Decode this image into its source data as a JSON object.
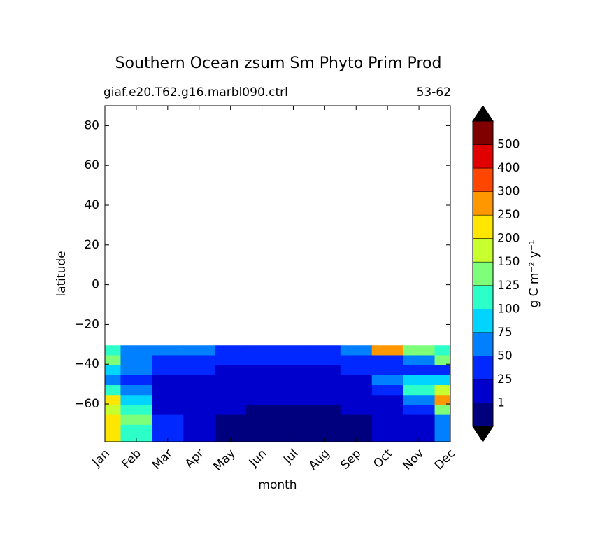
{
  "chart_data": {
    "type": "contourf",
    "title": "Southern Ocean zsum Sm Phyto Prim Prod",
    "subtitle_left": "giaf.e20.T62.g16.marbl090.ctrl",
    "subtitle_right": "53-62",
    "xlabel": "month",
    "ylabel": "latitude",
    "categories": [
      "Jan",
      "Feb",
      "Mar",
      "Apr",
      "May",
      "Jun",
      "Jul",
      "Aug",
      "Sep",
      "Oct",
      "Nov",
      "Dec"
    ],
    "latitudes": [
      -33,
      -38,
      -43,
      -48,
      -53,
      -58,
      -63,
      -68,
      -73,
      -78
    ],
    "z": [
      [
        110,
        70,
        60,
        55,
        40,
        35,
        35,
        40,
        60,
        260,
        130,
        110
      ],
      [
        130,
        60,
        40,
        40,
        30,
        28,
        28,
        30,
        35,
        40,
        50,
        130
      ],
      [
        80,
        50,
        30,
        25,
        20,
        15,
        15,
        20,
        25,
        35,
        30,
        40
      ],
      [
        60,
        40,
        20,
        15,
        10,
        8,
        8,
        10,
        15,
        60,
        80,
        90
      ],
      [
        110,
        60,
        20,
        10,
        5,
        4,
        4,
        5,
        10,
        40,
        110,
        180
      ],
      [
        220,
        90,
        20,
        8,
        3,
        2,
        2,
        3,
        5,
        20,
        60,
        260
      ],
      [
        180,
        110,
        20,
        5,
        1.5,
        0.8,
        0.8,
        0.8,
        3,
        10,
        30,
        130
      ],
      [
        220,
        130,
        30,
        3,
        0.8,
        0.5,
        0.5,
        0.5,
        0.8,
        5,
        10,
        60
      ],
      [
        220,
        110,
        30,
        2,
        0.5,
        0.3,
        0.3,
        0.3,
        0.5,
        1.5,
        5,
        50
      ],
      [
        200,
        100,
        25,
        2,
        0.5,
        0.3,
        0.3,
        0.3,
        0.5,
        1.5,
        5,
        50
      ]
    ],
    "ylim": [
      -79,
      90
    ],
    "yticks": [
      {
        "value": -60,
        "label": "−60"
      },
      {
        "value": -40,
        "label": "−40"
      },
      {
        "value": -20,
        "label": "−20"
      },
      0,
      20,
      40,
      60,
      80
    ],
    "levels": [
      1,
      25,
      50,
      75,
      100,
      125,
      150,
      200,
      250,
      300,
      400,
      500
    ],
    "colors": [
      "#00007f",
      "#0000cd",
      "#0028ff",
      "#0080ff",
      "#00d4ff",
      "#2cffc8",
      "#7dff7a",
      "#c8ff2e",
      "#ffe600",
      "#ff9800",
      "#ff4600",
      "#e00000",
      "#800000"
    ],
    "extend_color": "#000000",
    "colorbar_label": "g C m⁻² y⁻¹"
  }
}
